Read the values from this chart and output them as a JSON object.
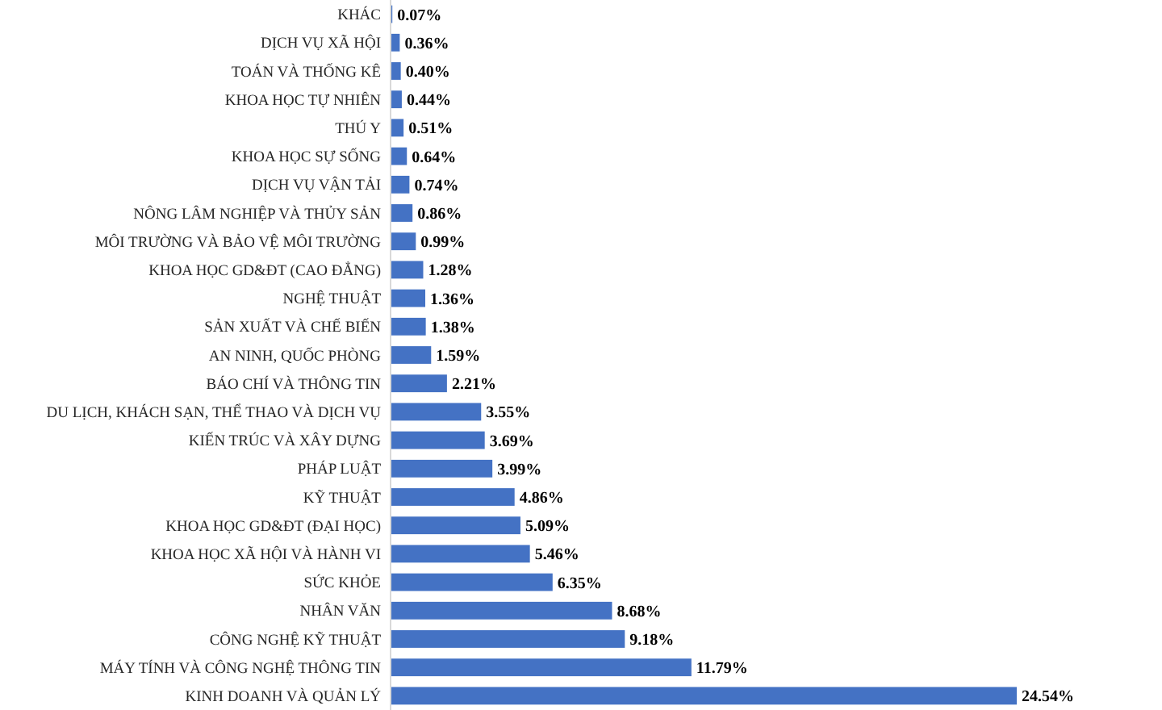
{
  "chart_data": {
    "type": "bar",
    "orientation": "horizontal",
    "color": "#4472c4",
    "categories": [
      "KHÁC",
      "DỊCH VỤ XÃ HỘI",
      "TOÁN VÀ THỐNG KÊ",
      "KHOA HỌC TỰ NHIÊN",
      "THÚ Y",
      "KHOA HỌC SỰ SỐNG",
      "DỊCH VỤ VẬN TẢI",
      "NÔNG LÂM NGHIỆP VÀ THỦY SẢN",
      "MÔI TRƯỜNG VÀ BẢO VỆ MÔI TRƯỜNG",
      "KHOA HỌC GD&ĐT (CAO ĐẲNG)",
      "NGHỆ THUẬT",
      "SẢN XUẤT VÀ CHẾ BIẾN",
      "AN NINH, QUỐC PHÒNG",
      "BÁO CHÍ VÀ THÔNG TIN",
      "DU LỊCH, KHÁCH SẠN, THỂ THAO VÀ DỊCH VỤ",
      "KIẾN TRÚC VÀ XÂY DỰNG",
      "PHÁP LUẬT",
      "KỸ THUẬT",
      "KHOA HỌC GD&ĐT (ĐẠI HỌC)",
      "KHOA HỌC XÃ HỘI VÀ HÀNH VI",
      "SỨC KHỎE",
      "NHÂN VĂN",
      "CÔNG NGHỆ KỸ THUẬT",
      "MÁY TÍNH VÀ CÔNG NGHỆ THÔNG TIN",
      "KINH DOANH VÀ QUẢN LÝ"
    ],
    "values": [
      0.07,
      0.36,
      0.4,
      0.44,
      0.51,
      0.64,
      0.74,
      0.86,
      0.99,
      1.28,
      1.36,
      1.38,
      1.59,
      2.21,
      3.55,
      3.69,
      3.99,
      4.86,
      5.09,
      5.46,
      6.35,
      8.68,
      9.18,
      11.79,
      24.54
    ],
    "value_labels": [
      "0.07%",
      "0.36%",
      "0.40%",
      "0.44%",
      "0.51%",
      "0.64%",
      "0.74%",
      "0.86%",
      "0.99%",
      "1.28%",
      "1.36%",
      "1.38%",
      "1.59%",
      "2.21%",
      "3.55%",
      "3.69%",
      "3.99%",
      "4.86%",
      "5.09%",
      "5.46%",
      "6.35%",
      "8.68%",
      "9.18%",
      "11.79%",
      "24.54%"
    ]
  }
}
